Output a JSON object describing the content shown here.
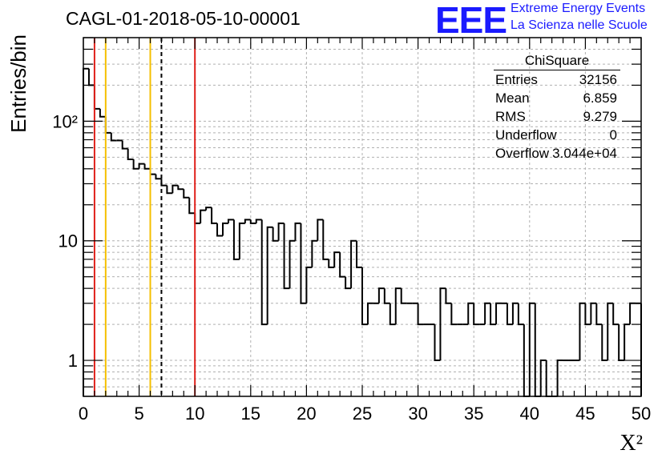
{
  "header": {
    "run_title": "CAGL-01-2018-05-10-00001",
    "logo_text": "EEE",
    "banner_line1": "Extreme Energy Events",
    "banner_line2": "La Scienza nelle Scuole"
  },
  "stats": {
    "title": "ChiSquare",
    "rows": [
      {
        "label": "Entries",
        "value": "32156"
      },
      {
        "label": "Mean",
        "value": "6.859"
      },
      {
        "label": "RMS",
        "value": "9.279"
      },
      {
        "label": "Underflow",
        "value": "0"
      },
      {
        "label": "Overflow",
        "value": "3.044e+04"
      }
    ]
  },
  "colors": {
    "red_line": "#e0201a",
    "yellow_line": "#f5c000",
    "histogram": "#000000",
    "grid": "#b0b0b0",
    "logo": "#1a1aff"
  },
  "chart_data": {
    "type": "histogram",
    "xlabel": "X²",
    "ylabel": "Entries/bin",
    "xlim": [
      0,
      50
    ],
    "ylim": [
      0.5,
      500
    ],
    "yscale": "log",
    "grid": true,
    "bin_width": 0.5,
    "bin_start": 0,
    "xticks": [
      0,
      5,
      10,
      15,
      20,
      25,
      30,
      35,
      40,
      45,
      50
    ],
    "yticks": [
      {
        "value": 1,
        "label": "1"
      },
      {
        "value": 10,
        "label": "10"
      },
      {
        "value": 100,
        "label": "10²"
      }
    ],
    "values": [
      275,
      200,
      127,
      109,
      80,
      69,
      69,
      59,
      48,
      40,
      44,
      40,
      36,
      33,
      29,
      25,
      29,
      27,
      23,
      17,
      14,
      18,
      19,
      14,
      11,
      14,
      15,
      7,
      14,
      15,
      14,
      15,
      2,
      13,
      10,
      14,
      4,
      10,
      14,
      3,
      6,
      10,
      15,
      7,
      6,
      8,
      5,
      4,
      10,
      6,
      2,
      3,
      3,
      4,
      3,
      2,
      4,
      3,
      3,
      3,
      2,
      2,
      2,
      1,
      4,
      3,
      2,
      2,
      2,
      3,
      2,
      2,
      3,
      2,
      3,
      3,
      2,
      3,
      2,
      0,
      3,
      0,
      1,
      0,
      0,
      1,
      1,
      1,
      1,
      3,
      2,
      3,
      2,
      1,
      3,
      2,
      1,
      2,
      3,
      3
    ],
    "vertical_lines": [
      {
        "x": 1,
        "color": "red"
      },
      {
        "x": 2,
        "color": "yellow"
      },
      {
        "x": 6,
        "color": "yellow"
      },
      {
        "x": 7,
        "color": "black",
        "style": "dashed"
      },
      {
        "x": 10,
        "color": "red"
      }
    ]
  }
}
